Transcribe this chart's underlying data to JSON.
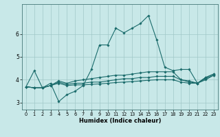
{
  "title": "",
  "xlabel": "Humidex (Indice chaleur)",
  "ylabel": "",
  "xlim": [
    -0.5,
    23.5
  ],
  "ylim": [
    2.7,
    7.3
  ],
  "xticks": [
    0,
    1,
    2,
    3,
    4,
    5,
    6,
    7,
    8,
    9,
    10,
    11,
    12,
    13,
    14,
    15,
    16,
    17,
    18,
    19,
    20,
    21,
    22,
    23
  ],
  "yticks": [
    3,
    4,
    5,
    6
  ],
  "background_color": "#c8e8e8",
  "grid_color": "#a0c8c8",
  "line_color": "#1a6b6b",
  "lines": [
    {
      "x": [
        0,
        1,
        2,
        3,
        4,
        5,
        6,
        7,
        8,
        9,
        10,
        11,
        12,
        13,
        14,
        15,
        16,
        17,
        18,
        19,
        20,
        21,
        22,
        23
      ],
      "y": [
        3.7,
        4.4,
        3.65,
        3.85,
        3.05,
        3.35,
        3.5,
        3.75,
        4.45,
        5.52,
        5.52,
        6.25,
        6.05,
        6.25,
        6.45,
        6.8,
        5.75,
        4.55,
        4.4,
        4.45,
        4.45,
        3.85,
        4.1,
        4.25
      ]
    },
    {
      "x": [
        0,
        1,
        2,
        3,
        4,
        5,
        6,
        7,
        8,
        9,
        10,
        11,
        12,
        13,
        14,
        15,
        16,
        17,
        18,
        19,
        20,
        21,
        22,
        23
      ],
      "y": [
        3.7,
        3.65,
        3.65,
        3.75,
        3.95,
        3.85,
        3.95,
        4.0,
        4.05,
        4.1,
        4.15,
        4.2,
        4.2,
        4.25,
        4.3,
        4.35,
        4.35,
        4.35,
        4.35,
        4.0,
        3.95,
        3.85,
        4.1,
        4.25
      ]
    },
    {
      "x": [
        0,
        1,
        2,
        3,
        4,
        5,
        6,
        7,
        8,
        9,
        10,
        11,
        12,
        13,
        14,
        15,
        16,
        17,
        18,
        19,
        20,
        21,
        22,
        23
      ],
      "y": [
        3.7,
        3.65,
        3.65,
        3.75,
        3.9,
        3.8,
        3.85,
        3.85,
        3.9,
        3.9,
        3.95,
        4.0,
        4.05,
        4.05,
        4.1,
        4.1,
        4.15,
        4.15,
        4.15,
        4.0,
        3.9,
        3.85,
        4.05,
        4.2
      ]
    },
    {
      "x": [
        0,
        1,
        2,
        3,
        4,
        5,
        6,
        7,
        8,
        9,
        10,
        11,
        12,
        13,
        14,
        15,
        16,
        17,
        18,
        19,
        20,
        21,
        22,
        23
      ],
      "y": [
        3.7,
        3.65,
        3.65,
        3.75,
        3.85,
        3.75,
        3.78,
        3.78,
        3.8,
        3.82,
        3.85,
        3.88,
        3.9,
        3.92,
        3.95,
        3.98,
        4.0,
        4.0,
        4.0,
        3.9,
        3.85,
        3.85,
        4.0,
        4.2
      ]
    }
  ]
}
